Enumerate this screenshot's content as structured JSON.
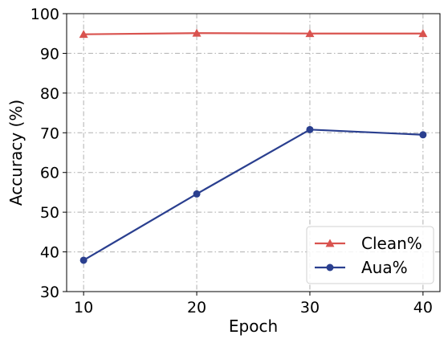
{
  "chart_data": {
    "type": "line",
    "title": "",
    "xlabel": "Epoch",
    "ylabel": "Accuracy (%)",
    "x": [
      10,
      20,
      30,
      40
    ],
    "xticks": [
      "10",
      "20",
      "30",
      "40"
    ],
    "yticks": [
      "30",
      "40",
      "50",
      "60",
      "70",
      "80",
      "90",
      "100"
    ],
    "xlim": [
      8.5,
      41.5
    ],
    "ylim": [
      30,
      100
    ],
    "grid": true,
    "legend_position": "lower-right",
    "series": [
      {
        "name": "Clean%",
        "values": [
          94.8,
          95.1,
          95.0,
          95.0
        ],
        "color": "#d9534f",
        "marker": "triangle"
      },
      {
        "name": "Aua%",
        "values": [
          37.9,
          54.6,
          70.8,
          69.5
        ],
        "color": "#2a3f8f",
        "marker": "circle"
      }
    ]
  }
}
